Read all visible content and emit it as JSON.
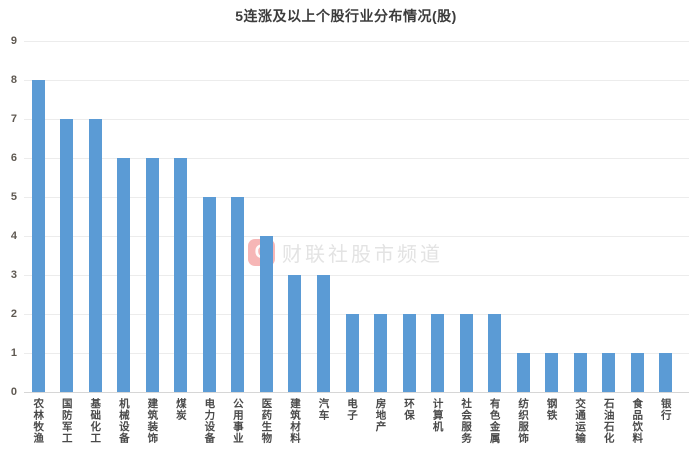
{
  "chart_data": {
    "type": "bar",
    "title": "5连涨及以上个股行业分布情况(股)",
    "categories": [
      "农林牧渔",
      "国防军工",
      "基础化工",
      "机械设备",
      "建筑装饰",
      "煤炭",
      "电力设备",
      "公用事业",
      "医药生物",
      "建筑材料",
      "汽车",
      "电子",
      "房地产",
      "环保",
      "计算机",
      "社会服务",
      "有色金属",
      "纺织服饰",
      "钢铁",
      "交通运输",
      "石油石化",
      "食品饮料",
      "银行"
    ],
    "values": [
      8,
      7,
      7,
      6,
      6,
      6,
      5,
      5,
      4,
      3,
      3,
      2,
      2,
      2,
      2,
      2,
      2,
      1,
      1,
      1,
      1,
      1,
      1
    ],
    "xlabel": "",
    "ylabel": "",
    "ylim": [
      0,
      9
    ],
    "ytick_interval": 1,
    "grid": "horizontal",
    "legend_position": "none",
    "bar_color": "#5B9BD5"
  },
  "watermark": {
    "logo_glyph": "C",
    "text": "财联社股市频道"
  },
  "colors": {
    "background": "#FFFFFF",
    "grid": "#ECECEC",
    "axis": "#D6D6D6",
    "y_tick_label": "#5F5952",
    "category_label": "#4A4A4A",
    "title": "#3C3C3C",
    "watermark_red": "#E95252",
    "watermark_text": "#E3E3E3"
  }
}
